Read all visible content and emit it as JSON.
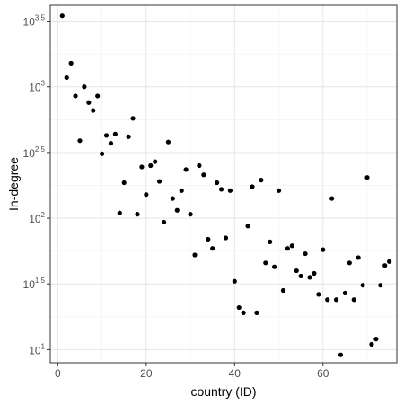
{
  "chart_data": {
    "type": "scatter",
    "xlabel": "country (ID)",
    "ylabel": "In-degree",
    "y_scale": "log10",
    "xlim": [
      -1.7,
      76.7
    ],
    "ylim_log10": [
      0.9,
      3.62
    ],
    "grid": true,
    "x_ticks": [
      0,
      20,
      40,
      60
    ],
    "x_tick_labels": [
      "0",
      "20",
      "40",
      "60"
    ],
    "y_ticks_log10": [
      1.0,
      1.5,
      2.0,
      2.5,
      3.0,
      3.5
    ],
    "y_tick_labels": [
      {
        "base": "10",
        "exp": "1"
      },
      {
        "base": "10",
        "exp": "1.5"
      },
      {
        "base": "10",
        "exp": "2"
      },
      {
        "base": "10",
        "exp": "2.5"
      },
      {
        "base": "10",
        "exp": "3"
      },
      {
        "base": "10",
        "exp": "3.5"
      }
    ],
    "point_color": "#000000",
    "points_log10": [
      [
        1,
        3.54
      ],
      [
        2,
        3.07
      ],
      [
        3,
        3.18
      ],
      [
        4,
        2.93
      ],
      [
        5,
        2.59
      ],
      [
        6,
        3.0
      ],
      [
        7,
        2.88
      ],
      [
        8,
        2.82
      ],
      [
        9,
        2.93
      ],
      [
        10,
        2.49
      ],
      [
        11,
        2.63
      ],
      [
        12,
        2.57
      ],
      [
        13,
        2.64
      ],
      [
        14,
        2.04
      ],
      [
        15,
        2.27
      ],
      [
        16,
        2.62
      ],
      [
        17,
        2.76
      ],
      [
        18,
        2.03
      ],
      [
        19,
        2.39
      ],
      [
        20,
        2.18
      ],
      [
        21,
        2.4
      ],
      [
        22,
        2.43
      ],
      [
        23,
        2.28
      ],
      [
        24,
        1.97
      ],
      [
        25,
        2.58
      ],
      [
        26,
        2.15
      ],
      [
        27,
        2.06
      ],
      [
        28,
        2.21
      ],
      [
        29,
        2.37
      ],
      [
        30,
        2.03
      ],
      [
        31,
        1.72
      ],
      [
        32,
        2.4
      ],
      [
        33,
        2.33
      ],
      [
        34,
        1.84
      ],
      [
        35,
        1.77
      ],
      [
        36,
        2.27
      ],
      [
        37,
        2.22
      ],
      [
        38,
        1.85
      ],
      [
        39,
        2.21
      ],
      [
        40,
        1.52
      ],
      [
        41,
        1.32
      ],
      [
        42,
        1.28
      ],
      [
        43,
        1.94
      ],
      [
        44,
        2.24
      ],
      [
        45,
        1.28
      ],
      [
        46,
        2.29
      ],
      [
        47,
        1.66
      ],
      [
        48,
        1.82
      ],
      [
        49,
        1.63
      ],
      [
        50,
        2.21
      ],
      [
        51,
        1.45
      ],
      [
        52,
        1.77
      ],
      [
        53,
        1.79
      ],
      [
        54,
        1.6
      ],
      [
        55,
        1.56
      ],
      [
        56,
        1.73
      ],
      [
        57,
        1.55
      ],
      [
        58,
        1.58
      ],
      [
        59,
        1.42
      ],
      [
        60,
        1.76
      ],
      [
        61,
        1.38
      ],
      [
        62,
        2.15
      ],
      [
        63,
        1.38
      ],
      [
        64,
        0.96
      ],
      [
        65,
        1.43
      ],
      [
        66,
        1.66
      ],
      [
        67,
        1.38
      ],
      [
        68,
        1.7
      ],
      [
        69,
        1.49
      ],
      [
        70,
        2.31
      ],
      [
        71,
        1.04
      ],
      [
        72,
        1.08
      ],
      [
        73,
        1.49
      ],
      [
        74,
        1.64
      ],
      [
        75,
        1.67
      ]
    ]
  }
}
